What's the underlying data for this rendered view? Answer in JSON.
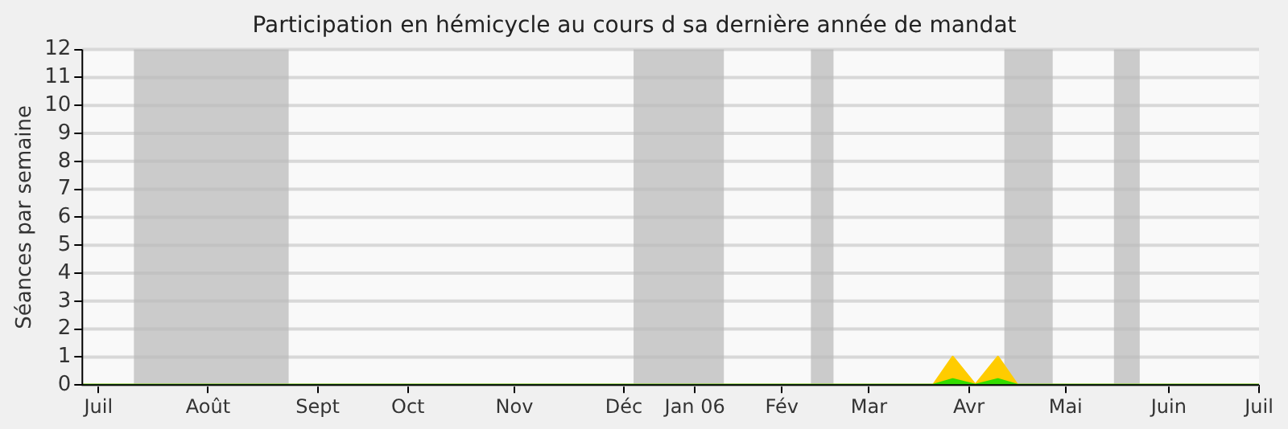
{
  "chart_data": {
    "type": "area",
    "title": "Participation en hémicycle au cours d sa dernière année de mandat",
    "ylabel": "Séances par semaine",
    "x": [
      "2005-07-01",
      "2006-03-22",
      "2006-03-28",
      "2006-04-04",
      "2006-04-11",
      "2006-04-17",
      "2006-07-01"
    ],
    "series": [
      {
        "color": "#ffcc00",
        "values": [
          0,
          0,
          1,
          0,
          1,
          0,
          0
        ]
      },
      {
        "color": "#33dd00",
        "values": [
          0,
          0,
          0.2,
          0,
          0.2,
          0,
          0
        ]
      }
    ],
    "xlim": [
      "2005-07-01",
      "2006-07-01"
    ],
    "xticks": [
      {
        "value": "2005-07-06",
        "label": "Juil"
      },
      {
        "value": "2005-08-09",
        "label": "Août"
      },
      {
        "value": "2005-09-12",
        "label": "Sept"
      },
      {
        "value": "2005-10-10",
        "label": "Oct"
      },
      {
        "value": "2005-11-12",
        "label": "Nov"
      },
      {
        "value": "2005-12-16",
        "label": "Déc"
      },
      {
        "value": "2006-01-07",
        "label": "Jan 06"
      },
      {
        "value": "2006-02-03",
        "label": "Fév"
      },
      {
        "value": "2006-03-02",
        "label": "Mar"
      },
      {
        "value": "2006-04-02",
        "label": "Avr"
      },
      {
        "value": "2006-05-02",
        "label": "Mai"
      },
      {
        "value": "2006-06-03",
        "label": "Juin"
      },
      {
        "value": "2006-07-01",
        "label": "Juil"
      }
    ],
    "ylim": [
      0,
      12
    ],
    "yticks": [
      0,
      1,
      2,
      3,
      4,
      5,
      6,
      7,
      8,
      9,
      10,
      11,
      12
    ],
    "grid": "y",
    "bands": [
      {
        "axis": "x",
        "from": "2005-07-17",
        "to": "2005-09-03",
        "color": "#bbbbbb"
      },
      {
        "axis": "x",
        "from": "2005-12-19",
        "to": "2006-01-16",
        "color": "#bbbbbb"
      },
      {
        "axis": "x",
        "from": "2006-02-12",
        "to": "2006-02-19",
        "color": "#bbbbbb"
      },
      {
        "axis": "x",
        "from": "2006-04-13",
        "to": "2006-04-28",
        "color": "#bbbbbb"
      },
      {
        "axis": "x",
        "from": "2006-05-17",
        "to": "2006-05-25",
        "color": "#bbbbbb"
      }
    ]
  }
}
